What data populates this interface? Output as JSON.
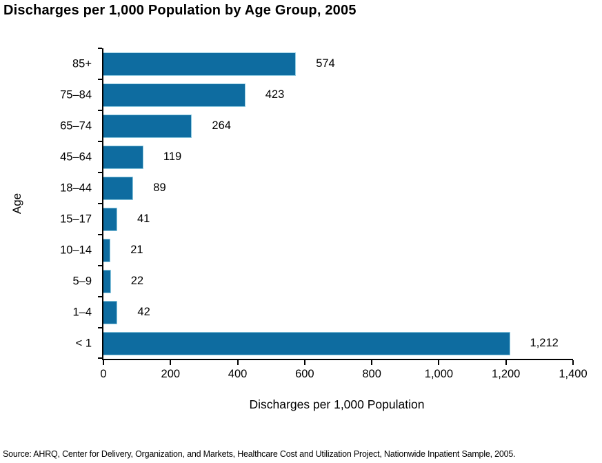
{
  "title": "Discharges per 1,000 Population by Age Group, 2005",
  "source": "Source:  AHRQ, Center for Delivery, Organization, and Markets, Healthcare Cost and Utilization Project, Nationwide Inpatient Sample, 2005.",
  "chart_data": {
    "type": "bar",
    "orientation": "horizontal",
    "title": "Discharges per 1,000 Population by Age Group, 2005",
    "xlabel": "Discharges per 1,000 Population",
    "ylabel": "Age",
    "categories": [
      "85+",
      "75–84",
      "65–74",
      "45–64",
      "18–44",
      "15–17",
      "10–14",
      "5–9",
      "1–4",
      "< 1"
    ],
    "values": [
      574,
      423,
      264,
      119,
      89,
      41,
      21,
      22,
      42,
      1212
    ],
    "value_labels": [
      "574",
      "423",
      "264",
      "119",
      "89",
      "41",
      "21",
      "22",
      "42",
      "1,212"
    ],
    "xlim": [
      0,
      1400
    ],
    "x_ticks": [
      0,
      200,
      400,
      600,
      800,
      1000,
      1200,
      1400
    ],
    "x_tick_labels": [
      "0",
      "200",
      "400",
      "600",
      "800",
      "1,000",
      "1,200",
      "1,400"
    ],
    "bar_color": "#0E6CA0",
    "bar_edge_color": "#93CDE2",
    "axis_color": "#000000",
    "grid": false,
    "legend": false
  }
}
